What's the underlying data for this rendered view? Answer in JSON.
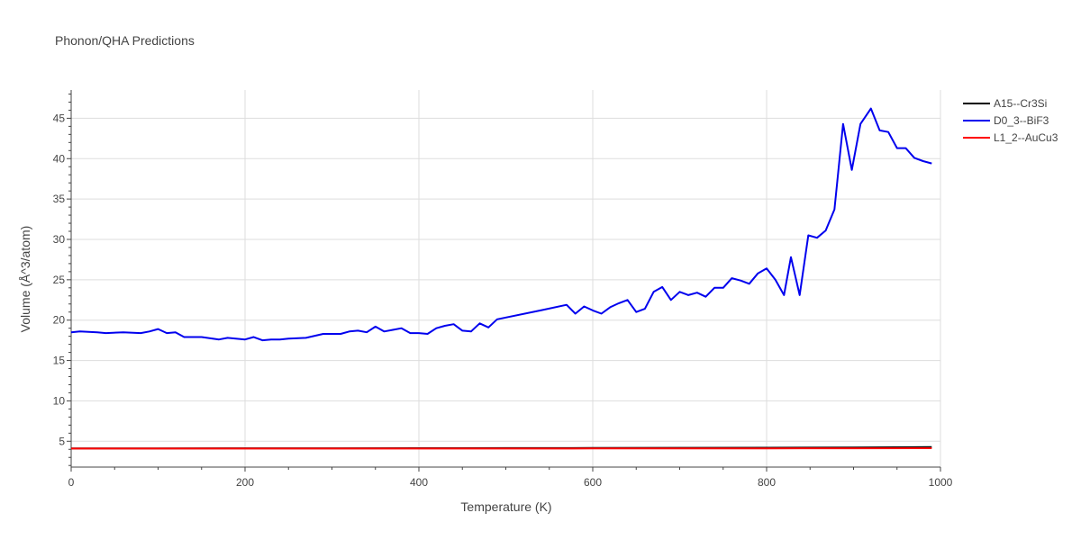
{
  "chart_data": {
    "type": "line",
    "title": "Phonon/QHA Predictions",
    "xlabel": "Temperature (K)",
    "ylabel": "Volume (Å^3/atom)",
    "xlim": [
      0,
      1000
    ],
    "ylim": [
      1.8,
      48.5
    ],
    "xticks": [
      0,
      200,
      400,
      600,
      800,
      1000
    ],
    "yticks": [
      5,
      10,
      15,
      20,
      25,
      30,
      35,
      40,
      45
    ],
    "grid": true,
    "legend_position": "top-right",
    "series": [
      {
        "name": "A15--Cr3Si",
        "color": "#000000",
        "x": [
          0,
          100,
          200,
          300,
          400,
          500,
          600,
          700,
          800,
          900,
          990
        ],
        "y": [
          4.12,
          4.12,
          4.13,
          4.13,
          4.14,
          4.15,
          4.16,
          4.18,
          4.2,
          4.23,
          4.27
        ]
      },
      {
        "name": "D0_3--BiF3",
        "color": "#0000ee",
        "x": [
          0,
          10,
          30,
          40,
          60,
          80,
          90,
          100,
          110,
          120,
          130,
          150,
          170,
          180,
          200,
          210,
          220,
          230,
          240,
          250,
          270,
          290,
          310,
          320,
          330,
          340,
          350,
          360,
          370,
          380,
          390,
          400,
          410,
          420,
          430,
          440,
          450,
          460,
          470,
          480,
          490,
          540,
          570,
          580,
          590,
          600,
          610,
          620,
          630,
          640,
          650,
          660,
          670,
          680,
          690,
          700,
          710,
          720,
          730,
          740,
          750,
          760,
          770,
          780,
          790,
          800,
          810,
          820,
          828,
          838,
          848,
          858,
          868,
          878,
          888,
          898,
          908,
          920,
          930,
          940,
          950,
          960,
          970,
          980,
          990
        ],
        "y": [
          18.5,
          18.6,
          18.5,
          18.4,
          18.5,
          18.4,
          18.6,
          18.9,
          18.4,
          18.5,
          17.9,
          17.9,
          17.6,
          17.8,
          17.6,
          17.9,
          17.5,
          17.6,
          17.6,
          17.7,
          17.8,
          18.3,
          18.3,
          18.6,
          18.7,
          18.5,
          19.2,
          18.6,
          18.8,
          19.0,
          18.4,
          18.4,
          18.3,
          19.0,
          19.3,
          19.5,
          18.7,
          18.6,
          19.6,
          19.1,
          20.1,
          21.2,
          21.9,
          20.8,
          21.7,
          21.2,
          20.8,
          21.6,
          22.1,
          22.5,
          21.0,
          21.4,
          23.5,
          24.1,
          22.5,
          23.5,
          23.1,
          23.4,
          22.9,
          24.0,
          24.0,
          25.2,
          24.9,
          24.5,
          25.8,
          26.4,
          25.0,
          23.1,
          27.8,
          23.1,
          30.5,
          30.2,
          31.1,
          33.7,
          44.3,
          38.6,
          44.3,
          46.2,
          43.5,
          43.3,
          41.3,
          41.3,
          40.1,
          39.7,
          39.4
        ]
      },
      {
        "name": "L1_2--AuCu3",
        "color": "#ff0000",
        "x": [
          0,
          100,
          200,
          300,
          400,
          500,
          600,
          700,
          800,
          900,
          990
        ],
        "y": [
          4.1,
          4.1,
          4.1,
          4.1,
          4.1,
          4.1,
          4.11,
          4.11,
          4.12,
          4.13,
          4.14
        ]
      }
    ]
  }
}
